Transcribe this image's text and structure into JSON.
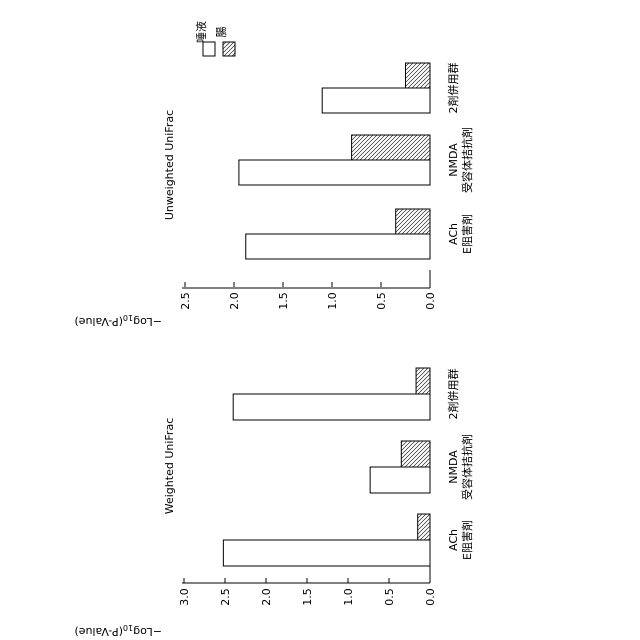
{
  "chart_data": [
    {
      "type": "bar",
      "title": "Weighted UniFrac",
      "ylabel": "−Log10(P-Value)",
      "ylim": [
        0,
        3.0
      ],
      "yticks": [
        "0.0",
        "0.5",
        "1.0",
        "1.5",
        "2.0",
        "2.5",
        "3.0"
      ],
      "categories": [
        [
          "ACh",
          "E阻害剤"
        ],
        [
          "NMDA",
          "受容体拮抗剤"
        ],
        [
          "2剤併用群"
        ]
      ],
      "series": [
        {
          "name": "唾液",
          "values": [
            2.52,
            0.73,
            2.4
          ]
        },
        {
          "name": "腸",
          "values": [
            0.15,
            0.35,
            0.17
          ]
        }
      ]
    },
    {
      "type": "bar",
      "title": "Unweighted UniFrac",
      "ylabel": "−Log10(P-Value)",
      "ylim": [
        0,
        2.5
      ],
      "yticks": [
        "0.0",
        "0.5",
        "1.0",
        "1.5",
        "2.0",
        "2.5"
      ],
      "categories": [
        [
          "ACh",
          "E阻害剤"
        ],
        [
          "NMDA",
          "受容体拮抗剤"
        ],
        [
          "2剤併用群"
        ]
      ],
      "series": [
        {
          "name": "唾液",
          "values": [
            1.88,
            1.95,
            1.1
          ]
        },
        {
          "name": "腸",
          "values": [
            0.35,
            0.8,
            0.25
          ]
        }
      ]
    }
  ],
  "legend": {
    "items": [
      {
        "label": "唾液",
        "pattern": "empty"
      },
      {
        "label": "腸",
        "pattern": "hatch"
      }
    ]
  },
  "colors": {
    "stroke": "#000000",
    "fill_empty": "#ffffff"
  }
}
